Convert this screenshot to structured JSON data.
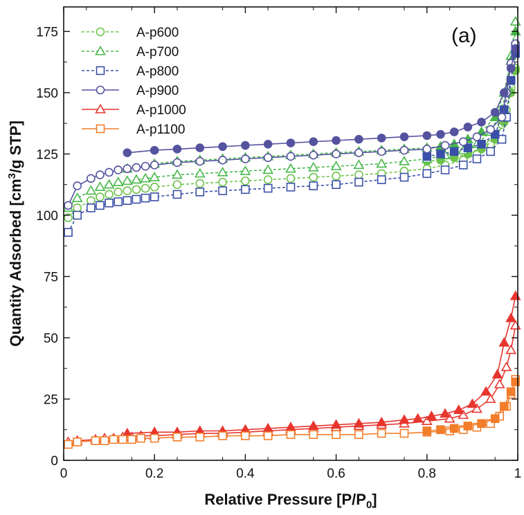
{
  "chart_data": {
    "type": "line",
    "panel_label": "(a)",
    "xlabel_main": "Relative Pressure [P/P",
    "xlabel_sub": "0",
    "xlabel_end": "]",
    "ylabel_pre": "Quantity Adsorbed [cm",
    "ylabel_sup": "3",
    "ylabel_post": "/g STP]",
    "xlim": [
      0,
      1
    ],
    "ylim": [
      0,
      185
    ],
    "x_ticks": [
      0,
      0.2,
      0.4,
      0.6,
      0.8,
      1
    ],
    "x_tick_labels": [
      "0",
      "0.2",
      "0.4",
      "0.6",
      "0.8",
      "1"
    ],
    "y_ticks": [
      0,
      25,
      50,
      75,
      100,
      125,
      150,
      175
    ],
    "y_tick_labels": [
      "0",
      "25",
      "50",
      "75",
      "100",
      "125",
      "150",
      "175"
    ],
    "grid": false,
    "legend_position": "top-left",
    "notes": "Open markers = adsorption branch, filled markers = desorption branch",
    "series": [
      {
        "name": "A-p600",
        "color": "#6cc24a",
        "marker": "circle",
        "dashed": true,
        "adsorption": {
          "x": [
            0.01,
            0.03,
            0.06,
            0.08,
            0.1,
            0.12,
            0.14,
            0.16,
            0.18,
            0.2,
            0.25,
            0.3,
            0.35,
            0.4,
            0.45,
            0.5,
            0.55,
            0.6,
            0.65,
            0.7,
            0.75,
            0.8,
            0.84,
            0.88,
            0.91,
            0.94,
            0.965,
            0.975,
            0.985,
            0.995
          ],
          "y": [
            99,
            103,
            106,
            107.5,
            108.5,
            109.5,
            110,
            110.5,
            111,
            111.5,
            112.5,
            113,
            113.5,
            114,
            114.5,
            115,
            115.5,
            116,
            116.5,
            117,
            118,
            119,
            120.5,
            122.5,
            125,
            129,
            137,
            143,
            152,
            160
          ]
        },
        "desorption": {
          "x": [
            0.8,
            0.83,
            0.86,
            0.89,
            0.92,
            0.95,
            0.97,
            0.985,
            0.995
          ],
          "y": [
            122,
            122.5,
            123.5,
            125,
            127,
            131,
            138,
            150,
            159
          ]
        }
      },
      {
        "name": "A-p700",
        "color": "#47b84a",
        "marker": "triangle",
        "dashed": true,
        "adsorption": {
          "x": [
            0.01,
            0.03,
            0.06,
            0.08,
            0.1,
            0.12,
            0.14,
            0.16,
            0.18,
            0.2,
            0.25,
            0.3,
            0.35,
            0.4,
            0.45,
            0.5,
            0.55,
            0.6,
            0.65,
            0.7,
            0.75,
            0.8,
            0.84,
            0.88,
            0.91,
            0.94,
            0.965,
            0.975,
            0.985,
            0.995
          ],
          "y": [
            103,
            107,
            110,
            111.5,
            112.5,
            113.5,
            114,
            114.5,
            115,
            115.5,
            116.5,
            117,
            117.5,
            118,
            118.5,
            119,
            119.5,
            120,
            120.5,
            121,
            122,
            123,
            124.5,
            126.5,
            129,
            134,
            143,
            151,
            165,
            179
          ]
        },
        "desorption": {
          "x": [
            0.14,
            0.2,
            0.25,
            0.3,
            0.35,
            0.4,
            0.45,
            0.5,
            0.55,
            0.6,
            0.65,
            0.7,
            0.75,
            0.8,
            0.83,
            0.86,
            0.89,
            0.92,
            0.95,
            0.97,
            0.985,
            0.995
          ],
          "y": [
            119,
            121,
            122,
            122.5,
            123,
            123.5,
            124,
            124.5,
            125,
            125.5,
            126,
            126.5,
            127,
            127.5,
            128,
            129,
            131,
            134,
            140,
            150,
            163,
            175
          ]
        }
      },
      {
        "name": "A-p800",
        "color": "#3a4fa8",
        "marker": "square",
        "dashed": true,
        "adsorption": {
          "x": [
            0.01,
            0.03,
            0.06,
            0.08,
            0.1,
            0.12,
            0.14,
            0.16,
            0.18,
            0.2,
            0.25,
            0.3,
            0.35,
            0.4,
            0.45,
            0.5,
            0.55,
            0.6,
            0.65,
            0.7,
            0.75,
            0.8,
            0.84,
            0.88,
            0.91,
            0.94,
            0.965,
            0.975,
            0.985,
            0.995
          ],
          "y": [
            93,
            100,
            103,
            104,
            105,
            105.5,
            106,
            106.5,
            107,
            107.5,
            108.5,
            109.5,
            110,
            110.5,
            111,
            111.5,
            112,
            112.5,
            113.5,
            114.5,
            115.5,
            117,
            118.5,
            120.5,
            123,
            126,
            131,
            140,
            155,
            169
          ]
        },
        "desorption": {
          "x": [
            0.8,
            0.83,
            0.86,
            0.89,
            0.92,
            0.95,
            0.97,
            0.985,
            0.995
          ],
          "y": [
            124,
            125,
            126,
            127.5,
            129,
            133,
            143,
            155,
            166
          ]
        }
      },
      {
        "name": "A-p900",
        "color": "#55529f",
        "marker": "circle",
        "dashed": false,
        "adsorption": {
          "x": [
            0.01,
            0.03,
            0.06,
            0.08,
            0.1,
            0.12,
            0.14,
            0.16,
            0.18,
            0.2,
            0.25,
            0.3,
            0.35,
            0.4,
            0.45,
            0.5,
            0.55,
            0.6,
            0.65,
            0.7,
            0.75,
            0.8,
            0.84,
            0.88,
            0.91,
            0.94,
            0.965,
            0.975,
            0.985,
            0.995
          ],
          "y": [
            104,
            112,
            115,
            116.5,
            117.5,
            118.5,
            119,
            119.5,
            120,
            120.5,
            121.5,
            122,
            122.5,
            123,
            123.5,
            124,
            124.5,
            125,
            125.5,
            126,
            126.5,
            127,
            128.5,
            130,
            132,
            135,
            140,
            150,
            162,
            170
          ]
        },
        "desorption": {
          "x": [
            0.14,
            0.2,
            0.25,
            0.3,
            0.35,
            0.4,
            0.45,
            0.5,
            0.55,
            0.6,
            0.65,
            0.7,
            0.75,
            0.8,
            0.83,
            0.86,
            0.89,
            0.92,
            0.95,
            0.97,
            0.985,
            0.995
          ],
          "y": [
            125.5,
            126.5,
            127,
            127.5,
            128,
            128.5,
            129,
            129.5,
            130,
            130.5,
            131,
            131.5,
            132,
            132.5,
            133,
            134,
            136,
            138,
            142,
            150,
            160,
            168
          ]
        }
      },
      {
        "name": "A-p1000",
        "color": "#e8352e",
        "marker": "triangle",
        "dashed": false,
        "adsorption": {
          "x": [
            0.01,
            0.03,
            0.07,
            0.09,
            0.11,
            0.13,
            0.15,
            0.17,
            0.2,
            0.25,
            0.3,
            0.35,
            0.4,
            0.45,
            0.5,
            0.55,
            0.6,
            0.65,
            0.7,
            0.75,
            0.8,
            0.85,
            0.88,
            0.91,
            0.94,
            0.96,
            0.975,
            0.985,
            0.995
          ],
          "y": [
            7.5,
            8,
            8.5,
            9,
            9,
            9.5,
            9.5,
            10,
            10,
            10.5,
            11,
            11,
            11.5,
            12,
            12.5,
            13,
            13.5,
            14,
            14.5,
            15,
            16,
            17,
            18.5,
            21,
            25,
            31,
            38,
            45,
            55
          ]
        },
        "desorption": {
          "x": [
            0.14,
            0.2,
            0.25,
            0.3,
            0.35,
            0.4,
            0.45,
            0.5,
            0.55,
            0.6,
            0.65,
            0.7,
            0.75,
            0.78,
            0.81,
            0.84,
            0.87,
            0.9,
            0.93,
            0.955,
            0.97,
            0.985,
            0.995
          ],
          "y": [
            11,
            11.5,
            11.5,
            12,
            12,
            12.5,
            13,
            13.5,
            14,
            14.5,
            15,
            15.5,
            16.5,
            17,
            18,
            19,
            20.5,
            23,
            28,
            35,
            48,
            58,
            67
          ]
        }
      },
      {
        "name": "A-p1100",
        "color": "#f27d2a",
        "marker": "square",
        "dashed": false,
        "adsorption": {
          "x": [
            0.01,
            0.03,
            0.07,
            0.09,
            0.11,
            0.13,
            0.15,
            0.17,
            0.2,
            0.25,
            0.3,
            0.35,
            0.4,
            0.45,
            0.5,
            0.55,
            0.6,
            0.65,
            0.7,
            0.75,
            0.8,
            0.85,
            0.88,
            0.91,
            0.94,
            0.96,
            0.975,
            0.985,
            0.995
          ],
          "y": [
            6.5,
            7.5,
            8,
            8,
            8.5,
            8.5,
            8.5,
            9,
            9,
            9.5,
            9.5,
            10,
            10,
            10,
            10.5,
            10.5,
            10.5,
            10.5,
            11,
            11,
            11.5,
            12,
            12.5,
            13.5,
            15,
            18,
            22,
            27,
            33
          ]
        },
        "desorption": {
          "x": [
            0.8,
            0.83,
            0.86,
            0.89,
            0.92,
            0.95,
            0.97,
            0.985,
            0.995
          ],
          "y": [
            12,
            12.5,
            13,
            14,
            15,
            17,
            22,
            28,
            32
          ]
        }
      }
    ]
  }
}
